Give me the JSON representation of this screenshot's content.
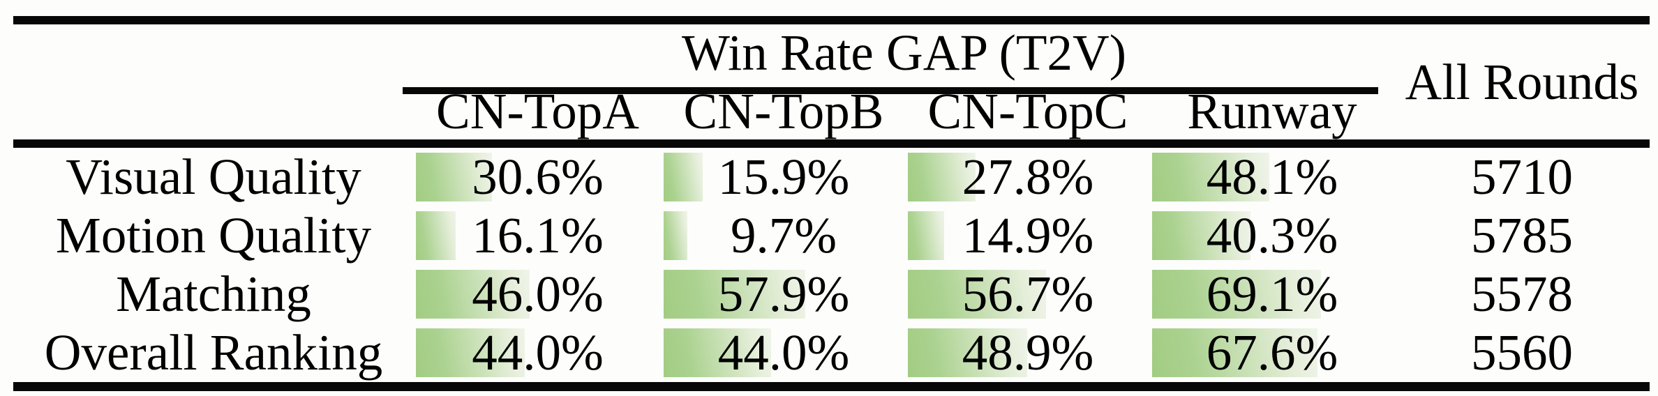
{
  "table": {
    "group_header": "Win Rate GAP (T2V)",
    "all_rounds_header": "All Rounds",
    "columns": [
      "CN-TopA",
      "CN-TopB",
      "CN-TopC",
      "Runway"
    ],
    "rows": [
      {
        "label": "Visual Quality",
        "cells": [
          {
            "value": 30.6,
            "text": "30.6%"
          },
          {
            "value": 15.9,
            "text": "15.9%"
          },
          {
            "value": 27.8,
            "text": "27.8%"
          },
          {
            "value": 48.1,
            "text": "48.1%"
          }
        ],
        "rounds": "5710"
      },
      {
        "label": "Motion Quality",
        "cells": [
          {
            "value": 16.1,
            "text": "16.1%"
          },
          {
            "value": 9.7,
            "text": "9.7%"
          },
          {
            "value": 14.9,
            "text": "14.9%"
          },
          {
            "value": 40.3,
            "text": "40.3%"
          }
        ],
        "rounds": "5785"
      },
      {
        "label": "Matching",
        "cells": [
          {
            "value": 46.0,
            "text": "46.0%"
          },
          {
            "value": 57.9,
            "text": "57.9%"
          },
          {
            "value": 56.7,
            "text": "56.7%"
          },
          {
            "value": 69.1,
            "text": "69.1%"
          }
        ],
        "rounds": "5578"
      },
      {
        "label": "Overall Ranking",
        "cells": [
          {
            "value": 44.0,
            "text": "44.0%"
          },
          {
            "value": 44.0,
            "text": "44.0%"
          },
          {
            "value": 48.9,
            "text": "48.9%"
          },
          {
            "value": 67.6,
            "text": "67.6%"
          }
        ],
        "rounds": "5560"
      }
    ]
  },
  "colors": {
    "bar_gradient_start": "#a2cc82",
    "bar_gradient_end": "#eff4e9",
    "rule": "#070707",
    "text": "#000000",
    "background": "#fdfdfc"
  },
  "chart_data": {
    "type": "table",
    "title": "Win Rate GAP (T2V)",
    "columns": [
      "CN-TopA",
      "CN-TopB",
      "CN-TopC",
      "Runway",
      "All Rounds"
    ],
    "row_labels": [
      "Visual Quality",
      "Motion Quality",
      "Matching",
      "Overall Ranking"
    ],
    "series": [
      {
        "name": "CN-TopA",
        "values": [
          30.6,
          16.1,
          46.0,
          44.0
        ]
      },
      {
        "name": "CN-TopB",
        "values": [
          15.9,
          9.7,
          57.9,
          44.0
        ]
      },
      {
        "name": "CN-TopC",
        "values": [
          27.8,
          14.9,
          56.7,
          48.9
        ]
      },
      {
        "name": "Runway",
        "values": [
          48.1,
          40.3,
          69.1,
          67.6
        ]
      }
    ],
    "all_rounds": [
      5710,
      5785,
      5578,
      5560
    ],
    "value_unit": "%",
    "bar_scale": [
      0,
      100
    ]
  }
}
